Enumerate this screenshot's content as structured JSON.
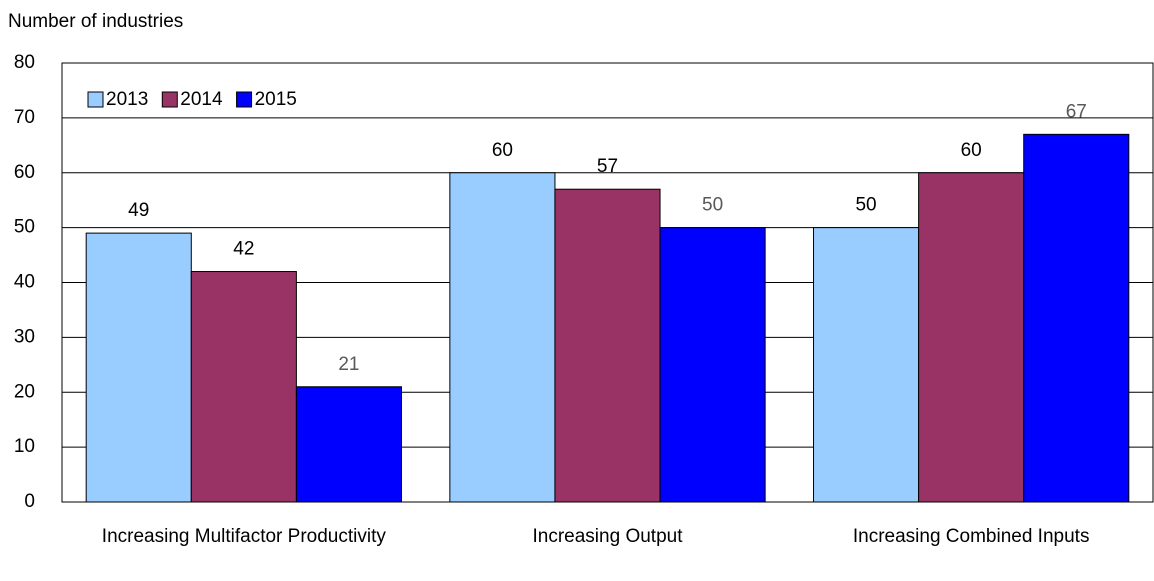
{
  "chart_data": {
    "type": "bar",
    "y_axis_label": "Number of industries",
    "categories": [
      "Increasing Multifactor Productivity",
      "Increasing Output",
      "Increasing Combined Inputs"
    ],
    "series": [
      {
        "name": "2013",
        "color": "#99ccff",
        "values": [
          49,
          60,
          50
        ]
      },
      {
        "name": "2014",
        "color": "#993366",
        "values": [
          42,
          57,
          60
        ]
      },
      {
        "name": "2015",
        "color": "#0000ff",
        "values": [
          21,
          50,
          67
        ]
      }
    ],
    "ylim": [
      0,
      80
    ],
    "yticks": [
      0,
      10,
      20,
      30,
      40,
      50,
      60,
      70,
      80
    ],
    "grid": true,
    "legend": "top-left"
  }
}
